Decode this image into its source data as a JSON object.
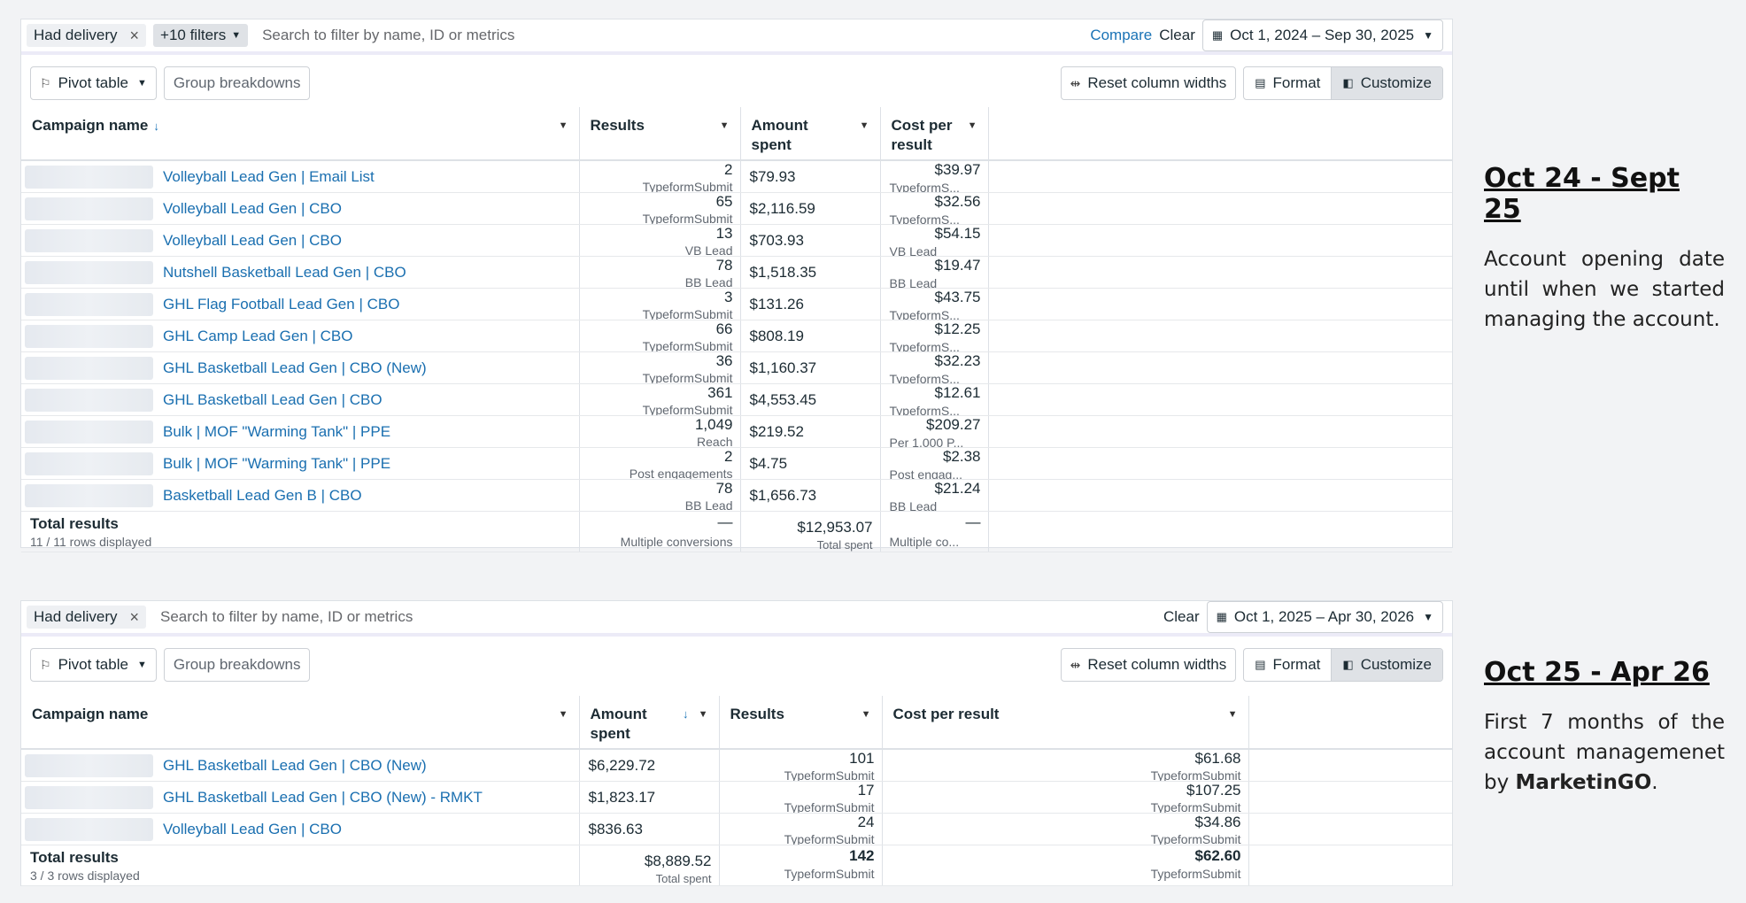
{
  "panel1": {
    "chips": {
      "delivery": "Had delivery",
      "more": "+10 filters"
    },
    "search_placeholder": "Search to filter by name, ID or metrics",
    "compare": "Compare",
    "clear": "Clear",
    "date_range": "Oct 1, 2024 – Sep 30, 2025",
    "toolbar": {
      "pivot": "Pivot table",
      "group": "Group breakdowns",
      "reset": "Reset column widths",
      "format": "Format",
      "customize": "Customize"
    },
    "headers": {
      "name": "Campaign name",
      "c1": "Results",
      "c2": "Amount spent",
      "c3": "Cost per result"
    },
    "rows": [
      {
        "name": "Volleyball Lead Gen | Email List",
        "res": "2",
        "res_sub": "TypeformSubmit",
        "spent": "$79.93",
        "cpr": "$39.97",
        "cpr_sub": "TypeformS..."
      },
      {
        "name": "Volleyball Lead Gen | CBO",
        "res": "65",
        "res_sub": "TypeformSubmit",
        "spent": "$2,116.59",
        "cpr": "$32.56",
        "cpr_sub": "TypeformS..."
      },
      {
        "name": "Volleyball Lead Gen | CBO",
        "res": "13",
        "res_sub": "VB Lead",
        "spent": "$703.93",
        "cpr": "$54.15",
        "cpr_sub": "VB Lead"
      },
      {
        "name": "Nutshell Basketball Lead Gen | CBO",
        "res": "78",
        "res_sub": "BB Lead",
        "spent": "$1,518.35",
        "cpr": "$19.47",
        "cpr_sub": "BB Lead"
      },
      {
        "name": "GHL Flag Football Lead Gen | CBO",
        "res": "3",
        "res_sub": "TypeformSubmit",
        "spent": "$131.26",
        "cpr": "$43.75",
        "cpr_sub": "TypeformS..."
      },
      {
        "name": "GHL Camp Lead Gen | CBO",
        "res": "66",
        "res_sub": "TypeformSubmit",
        "spent": "$808.19",
        "cpr": "$12.25",
        "cpr_sub": "TypeformS..."
      },
      {
        "name": "GHL Basketball Lead Gen | CBO (New)",
        "res": "36",
        "res_sub": "TypeformSubmit",
        "spent": "$1,160.37",
        "cpr": "$32.23",
        "cpr_sub": "TypeformS..."
      },
      {
        "name": "GHL Basketball Lead Gen | CBO",
        "res": "361",
        "res_sub": "TypeformSubmit",
        "spent": "$4,553.45",
        "cpr": "$12.61",
        "cpr_sub": "TypeformS..."
      },
      {
        "name": "Bulk | MOF \"Warming Tank\" | PPE",
        "res": "1,049",
        "res_sub": "Reach",
        "spent": "$219.52",
        "cpr": "$209.27",
        "cpr_sub": "Per 1,000 P..."
      },
      {
        "name": "Bulk | MOF \"Warming Tank\" | PPE",
        "res": "2",
        "res_sub": "Post engagements",
        "spent": "$4.75",
        "cpr": "$2.38",
        "cpr_sub": "Post engag..."
      },
      {
        "name": "Basketball Lead Gen B | CBO",
        "res": "78",
        "res_sub": "BB Lead",
        "spent": "$1,656.73",
        "cpr": "$21.24",
        "cpr_sub": "BB Lead"
      }
    ],
    "total": {
      "label": "Total results",
      "rows": "11 / 11 rows displayed",
      "res": "—",
      "res_sub": "Multiple conversions",
      "spent": "$12,953.07",
      "spent_sub": "Total spent",
      "cpr": "—",
      "cpr_sub": "Multiple co..."
    }
  },
  "panel2": {
    "chips": {
      "delivery": "Had delivery"
    },
    "search_placeholder": "Search to filter by name, ID or metrics",
    "clear": "Clear",
    "date_range": "Oct 1, 2025 – Apr 30, 2026",
    "toolbar": {
      "pivot": "Pivot table",
      "group": "Group breakdowns",
      "reset": "Reset column widths",
      "format": "Format",
      "customize": "Customize"
    },
    "headers": {
      "name": "Campaign name",
      "c1": "Amount spent",
      "c2": "Results",
      "c3": "Cost per result"
    },
    "rows": [
      {
        "name": "GHL Basketball Lead Gen | CBO (New)",
        "spent": "$6,229.72",
        "res": "101",
        "res_sub": "TypeformSubmit",
        "cpr": "$61.68",
        "cpr_sub": "TypeformSubmit"
      },
      {
        "name": "GHL Basketball Lead Gen | CBO (New) - RMKT",
        "spent": "$1,823.17",
        "res": "17",
        "res_sub": "TypeformSubmit",
        "cpr": "$107.25",
        "cpr_sub": "TypeformSubmit"
      },
      {
        "name": "Volleyball Lead Gen | CBO",
        "spent": "$836.63",
        "res": "24",
        "res_sub": "TypeformSubmit",
        "cpr": "$34.86",
        "cpr_sub": "TypeformSubmit"
      }
    ],
    "total": {
      "label": "Total results",
      "rows": "3 / 3 rows displayed",
      "spent": "$8,889.52",
      "spent_sub": "Total spent",
      "res": "142",
      "res_sub": "TypeformSubmit",
      "cpr": "$62.60",
      "cpr_sub": "TypeformSubmit"
    }
  },
  "notes": [
    {
      "heading": "Oct 24 - Sept 25",
      "text": "Account opening date until when we started managing the account."
    },
    {
      "heading": "Oct 25 - Apr 26",
      "text_before": "First 7 months of the account managemenet by ",
      "brand": "MarketinGO",
      "text_after": "."
    }
  ]
}
